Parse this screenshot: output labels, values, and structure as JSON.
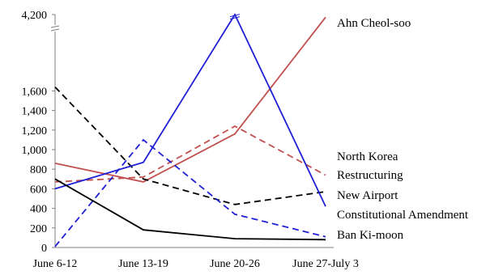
{
  "chart_data": {
    "type": "line",
    "title": "",
    "xlabel": "",
    "ylabel": "",
    "categories": [
      "June 6-12",
      "June 13-19",
      "June 20-26",
      "June 27-July 3"
    ],
    "y_ticks": [
      0,
      200,
      400,
      600,
      800,
      1000,
      1200,
      1400,
      1600
    ],
    "y_ticks_labels": [
      "0",
      "200",
      "400",
      "600",
      "800",
      "1,000",
      "1,200",
      "1,400",
      "1,600"
    ],
    "y_break": {
      "top_label": "4,200",
      "top_value": 4200
    },
    "ylim": [
      0,
      4200
    ],
    "grid": false,
    "legend": "labels at line ends (right)",
    "series": [
      {
        "name": "Ahn Cheol-soo",
        "values": [
          860,
          670,
          1160,
          4100
        ],
        "color": "#c0504d",
        "dash": "solid"
      },
      {
        "name": "North Korea",
        "values": [
          670,
          720,
          1240,
          740
        ],
        "color": "#c0504d",
        "dash": "dashed"
      },
      {
        "name": "Restructuring",
        "values": [
          1640,
          700,
          440,
          570
        ],
        "color": "#000000",
        "dash": "dashed"
      },
      {
        "name": "New Airport",
        "values": [
          600,
          870,
          4200,
          420
        ],
        "color": "#1f1fd6",
        "dash": "solid"
      },
      {
        "name": "Constitutional Amendment",
        "values": [
          10,
          1100,
          340,
          110
        ],
        "color": "#1f1fd6",
        "dash": "dashed"
      },
      {
        "name": "Ban Ki-moon",
        "values": [
          700,
          180,
          90,
          80
        ],
        "color": "#000000",
        "dash": "solid"
      }
    ]
  }
}
